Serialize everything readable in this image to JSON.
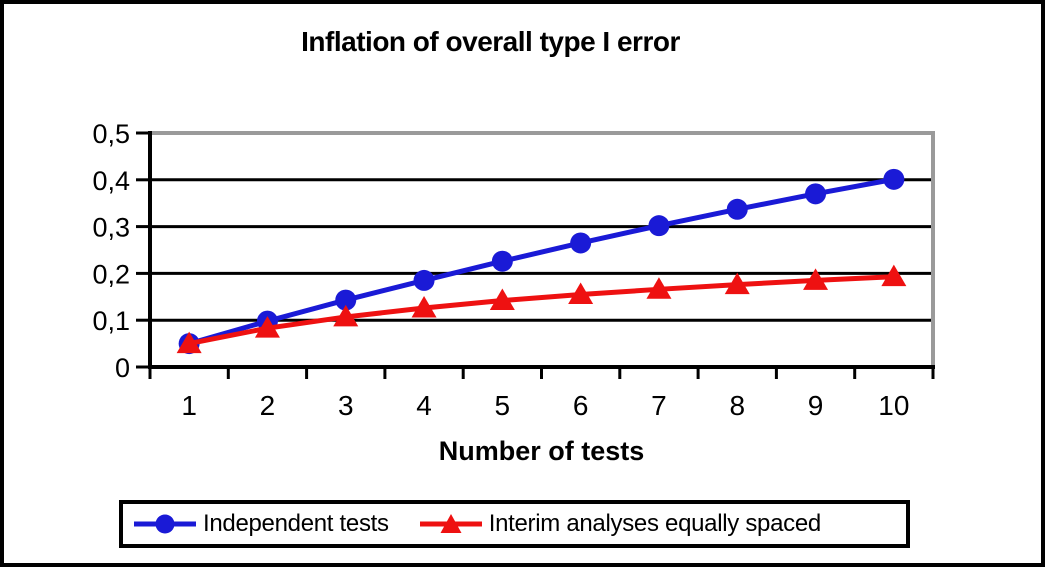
{
  "chart": {
    "title": "Inflation of overall type I error"
  },
  "chart_data": {
    "type": "line",
    "title": "Inflation of overall type I error",
    "xlabel": "Number of tests",
    "ylabel": "",
    "x": [
      1,
      2,
      3,
      4,
      5,
      6,
      7,
      8,
      9,
      10
    ],
    "x_tick_labels": [
      "1",
      "2",
      "3",
      "4",
      "5",
      "6",
      "7",
      "8",
      "9",
      "10"
    ],
    "y_tick_labels": [
      "0",
      "0,1",
      "0,2",
      "0,3",
      "0,4",
      "0,5"
    ],
    "ylim": [
      0,
      0.5
    ],
    "y_tick_step": 0.1,
    "decimal_separator": ",",
    "grid": "horizontal-major",
    "legend_position": "bottom",
    "series": [
      {
        "name": "Independent tests",
        "marker": "circle",
        "color": "#1a1ad6",
        "values": [
          0.05,
          0.098,
          0.143,
          0.185,
          0.226,
          0.265,
          0.302,
          0.337,
          0.37,
          0.401
        ]
      },
      {
        "name": "Interim analyses equally spaced",
        "marker": "triangle",
        "color": "#ee1111",
        "values": [
          0.05,
          0.083,
          0.107,
          0.126,
          0.142,
          0.155,
          0.166,
          0.176,
          0.185,
          0.193
        ]
      }
    ]
  },
  "legend": {
    "items": [
      {
        "label": "Independent tests",
        "marker": "circle",
        "color": "#1a1ad6"
      },
      {
        "label": "Interim analyses equally spaced",
        "marker": "triangle",
        "color": "#ee1111"
      }
    ]
  },
  "colors": {
    "background": "#ffffff",
    "outer_border": "#000000",
    "grid": "#000000",
    "axis": "#000000",
    "plot_border": "#9a9a9a",
    "series_blue": "#1a1ad6",
    "series_red": "#ee1111"
  }
}
